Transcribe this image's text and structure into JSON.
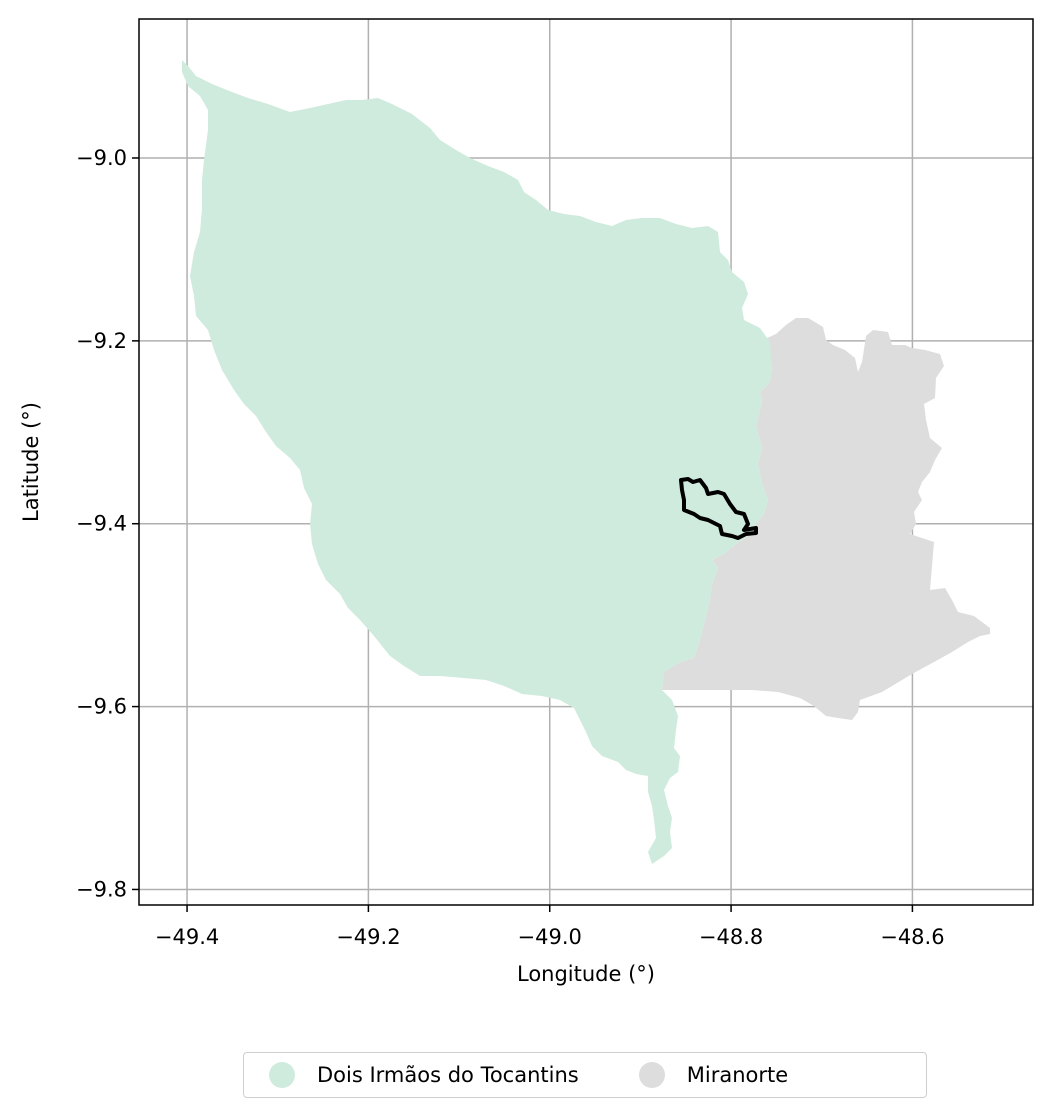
{
  "map": {
    "xaxis": {
      "label": "Longitude (°)",
      "ticks": [
        -49.4,
        -49.2,
        -49.0,
        -48.8,
        -48.6
      ],
      "tick_labels": [
        "−49.4",
        "−49.2",
        "−49.0",
        "−48.8",
        "−48.6"
      ],
      "range": [
        -49.453,
        -48.467
      ]
    },
    "yaxis": {
      "label": "Latitude (°)",
      "ticks": [
        -9.0,
        -9.2,
        -9.4,
        -9.6,
        -9.8
      ],
      "tick_labels": [
        "−9.0",
        "−9.2",
        "−9.4",
        "−9.6",
        "−9.8"
      ],
      "range": [
        -9.817,
        -8.848
      ]
    },
    "grid": true,
    "regions": [
      {
        "name": "Dois Irmãos do Tocantins",
        "color": "#cfebdd"
      },
      {
        "name": "Miranorte",
        "color": "#dddddd"
      }
    ],
    "outline": {
      "color": "#000000",
      "description_hidden": true
    }
  },
  "legend": {
    "placement": "bottom-center",
    "items": [
      {
        "label": "Dois Irmãos do Tocantins",
        "color": "#cfebdd"
      },
      {
        "label": "Miranorte",
        "color": "#dddddd"
      }
    ]
  }
}
